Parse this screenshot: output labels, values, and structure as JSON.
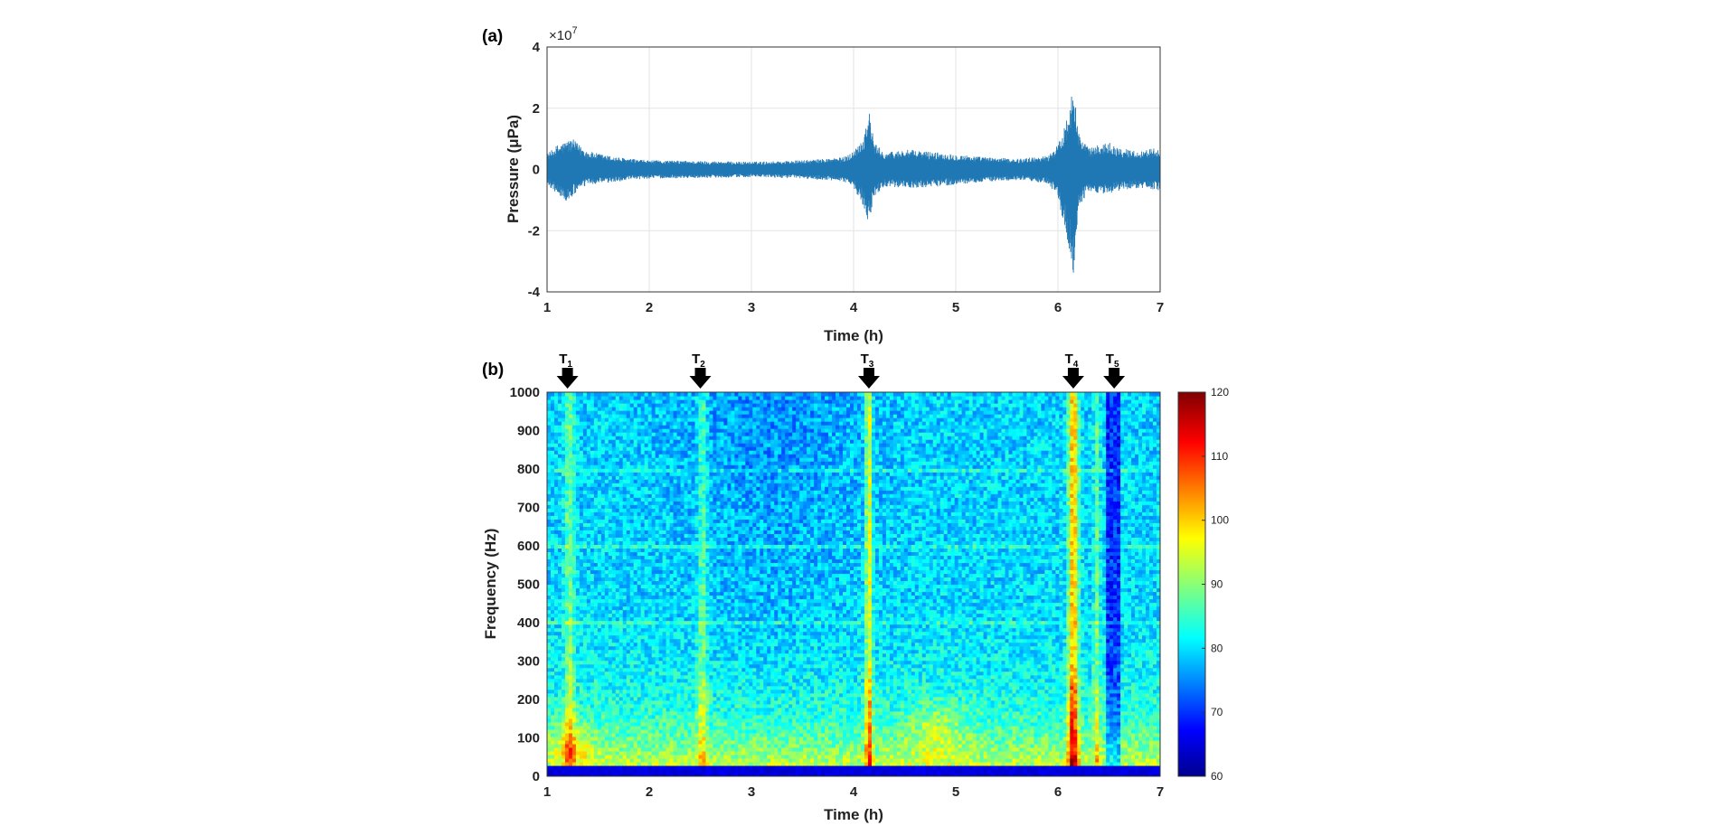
{
  "chart_data": [
    {
      "panel_label": "(a)",
      "type": "line",
      "xlabel": "Time (h)",
      "ylabel": "Pressure (μPa)",
      "y_exponent_label": "×10",
      "y_exponent_power": "7",
      "xlim": [
        1,
        7
      ],
      "ylim": [
        -4,
        4
      ],
      "xticks": [
        "1",
        "2",
        "3",
        "4",
        "5",
        "6",
        "7"
      ],
      "yticks": [
        "-4",
        "-2",
        "0",
        "2",
        "4"
      ],
      "grid": true,
      "color": "#1f77b4",
      "series": [
        {
          "kind": "upper_envelope",
          "x": [
            1.0,
            1.1,
            1.2,
            1.25,
            1.3,
            1.4,
            1.6,
            1.8,
            2.0,
            2.5,
            3.0,
            3.5,
            3.9,
            4.0,
            4.1,
            4.15,
            4.2,
            4.3,
            4.5,
            4.7,
            5.0,
            5.3,
            5.6,
            5.9,
            6.0,
            6.1,
            6.15,
            6.2,
            6.3,
            6.4,
            6.5,
            6.6,
            6.8,
            7.0
          ],
          "y": [
            0.5,
            0.8,
            0.95,
            1.0,
            0.85,
            0.6,
            0.45,
            0.35,
            0.3,
            0.28,
            0.25,
            0.3,
            0.4,
            0.6,
            1.1,
            2.0,
            0.9,
            0.55,
            0.65,
            0.6,
            0.5,
            0.4,
            0.35,
            0.45,
            0.8,
            1.8,
            3.2,
            1.2,
            0.7,
            0.8,
            0.9,
            0.7,
            0.6,
            0.75
          ]
        },
        {
          "kind": "lower_envelope",
          "x": [
            1.0,
            1.1,
            1.2,
            1.25,
            1.3,
            1.4,
            1.6,
            1.8,
            2.0,
            2.5,
            3.0,
            3.5,
            3.9,
            4.0,
            4.1,
            4.15,
            4.2,
            4.3,
            4.5,
            4.7,
            5.0,
            5.3,
            5.6,
            5.9,
            6.0,
            6.1,
            6.15,
            6.2,
            6.3,
            6.4,
            6.5,
            6.6,
            6.8,
            7.0
          ],
          "y": [
            -0.5,
            -0.8,
            -1.1,
            -0.9,
            -0.7,
            -0.5,
            -0.45,
            -0.35,
            -0.3,
            -0.28,
            -0.25,
            -0.3,
            -0.4,
            -0.6,
            -1.2,
            -1.8,
            -0.9,
            -0.55,
            -0.6,
            -0.6,
            -0.5,
            -0.4,
            -0.35,
            -0.45,
            -0.9,
            -2.5,
            -3.6,
            -1.3,
            -0.7,
            -0.8,
            -0.8,
            -0.7,
            -0.6,
            -0.7
          ]
        }
      ]
    },
    {
      "panel_label": "(b)",
      "type": "heatmap",
      "xlabel": "Time (h)",
      "ylabel": "Frequency (Hz)",
      "xlim": [
        1,
        7
      ],
      "ylim": [
        0,
        1000
      ],
      "xticks": [
        "1",
        "2",
        "3",
        "4",
        "5",
        "6",
        "7"
      ],
      "yticks": [
        "0",
        "100",
        "200",
        "300",
        "400",
        "500",
        "600",
        "700",
        "800",
        "900",
        "1000"
      ],
      "colorbar": {
        "min": 60,
        "max": 120,
        "ticks": [
          "60",
          "70",
          "80",
          "90",
          "100",
          "110",
          "120"
        ],
        "colormap": "jet"
      },
      "annotations": [
        {
          "label": "T",
          "subscript": "1",
          "x": 1.2
        },
        {
          "label": "T",
          "subscript": "2",
          "x": 2.5
        },
        {
          "label": "T",
          "subscript": "3",
          "x": 4.15
        },
        {
          "label": "T",
          "subscript": "4",
          "x": 6.15
        },
        {
          "label": "T",
          "subscript": "5",
          "x": 6.55
        }
      ]
    }
  ]
}
